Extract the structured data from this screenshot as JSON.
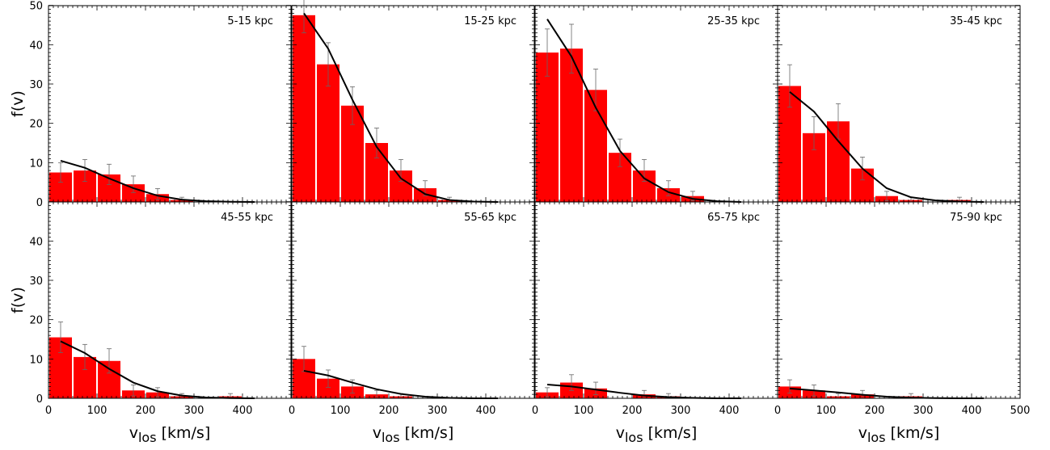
{
  "chart_data": {
    "type": "bar",
    "layout": "2x4 grid of panels with shared axes",
    "ylabel": "f(v)",
    "xlabel": "v",
    "xlabel_subscript": "los",
    "xlabel_unit": " [km/s]",
    "xlim": [
      0,
      500
    ],
    "ylim": [
      0,
      50
    ],
    "x_ticks": [
      0,
      100,
      200,
      300,
      400
    ],
    "x_ticks_last_panel": [
      0,
      100,
      200,
      300,
      400,
      500
    ],
    "y_ticks": [
      0,
      10,
      20,
      30,
      40,
      50
    ],
    "y_ticks_lower_row": [
      0,
      10,
      20,
      30,
      40
    ],
    "bin_width": 50,
    "bar_color": "#ff0000",
    "line_color": "#000000",
    "errorbar_color": "#666666",
    "panels": [
      {
        "label": "5-15 kpc",
        "bins": [
          {
            "x": 25,
            "y": 7.5,
            "err": 2.5
          },
          {
            "x": 75,
            "y": 8,
            "err": 2.8
          },
          {
            "x": 125,
            "y": 7,
            "err": 2.6
          },
          {
            "x": 175,
            "y": 4.5,
            "err": 2.1
          },
          {
            "x": 225,
            "y": 2,
            "err": 1.4
          },
          {
            "x": 275,
            "y": 0.5,
            "err": 0.7
          }
        ],
        "model": [
          [
            25,
            10.5
          ],
          [
            75,
            8.7
          ],
          [
            125,
            6.0
          ],
          [
            175,
            3.5
          ],
          [
            225,
            1.6
          ],
          [
            275,
            0.6
          ],
          [
            325,
            0.2
          ],
          [
            375,
            0.05
          ],
          [
            425,
            0
          ]
        ]
      },
      {
        "label": "15-25 kpc",
        "bins": [
          {
            "x": 25,
            "y": 47.5,
            "err": 4.5
          },
          {
            "x": 75,
            "y": 35,
            "err": 5.5
          },
          {
            "x": 125,
            "y": 24.5,
            "err": 4.8
          },
          {
            "x": 175,
            "y": 15,
            "err": 3.8
          },
          {
            "x": 225,
            "y": 8,
            "err": 2.8
          },
          {
            "x": 275,
            "y": 3.5,
            "err": 1.9
          },
          {
            "x": 325,
            "y": 0.5,
            "err": 0.7
          }
        ],
        "model": [
          [
            25,
            48
          ],
          [
            75,
            39
          ],
          [
            125,
            26
          ],
          [
            175,
            14
          ],
          [
            225,
            6
          ],
          [
            275,
            2
          ],
          [
            325,
            0.5
          ],
          [
            375,
            0.1
          ],
          [
            425,
            0
          ]
        ]
      },
      {
        "label": "25-35 kpc",
        "bins": [
          {
            "x": 25,
            "y": 38,
            "err": 6
          },
          {
            "x": 75,
            "y": 39,
            "err": 6.2
          },
          {
            "x": 125,
            "y": 28.5,
            "err": 5.3
          },
          {
            "x": 175,
            "y": 12.5,
            "err": 3.5
          },
          {
            "x": 225,
            "y": 8,
            "err": 2.8
          },
          {
            "x": 275,
            "y": 3.5,
            "err": 1.9
          },
          {
            "x": 325,
            "y": 1.5,
            "err": 1.2
          }
        ],
        "model": [
          [
            25,
            46.5
          ],
          [
            75,
            37
          ],
          [
            125,
            24
          ],
          [
            175,
            13
          ],
          [
            225,
            6
          ],
          [
            275,
            2.5
          ],
          [
            325,
            0.8
          ],
          [
            375,
            0.2
          ],
          [
            425,
            0
          ]
        ]
      },
      {
        "label": "35-45 kpc",
        "bins": [
          {
            "x": 25,
            "y": 29.5,
            "err": 5.4
          },
          {
            "x": 75,
            "y": 17.5,
            "err": 4.2
          },
          {
            "x": 125,
            "y": 20.5,
            "err": 4.5
          },
          {
            "x": 175,
            "y": 8.5,
            "err": 2.9
          },
          {
            "x": 225,
            "y": 1.5,
            "err": 1.2
          },
          {
            "x": 275,
            "y": 0.5,
            "err": 0.7
          },
          {
            "x": 375,
            "y": 0.5,
            "err": 0.7
          }
        ],
        "model": [
          [
            25,
            28
          ],
          [
            75,
            23
          ],
          [
            125,
            15.5
          ],
          [
            175,
            8.5
          ],
          [
            225,
            3.5
          ],
          [
            275,
            1.2
          ],
          [
            325,
            0.4
          ],
          [
            375,
            0.1
          ],
          [
            425,
            0
          ]
        ]
      },
      {
        "label": "45-55 kpc",
        "bins": [
          {
            "x": 25,
            "y": 15.5,
            "err": 3.9
          },
          {
            "x": 75,
            "y": 10.5,
            "err": 3.2
          },
          {
            "x": 125,
            "y": 9.5,
            "err": 3.1
          },
          {
            "x": 175,
            "y": 2,
            "err": 1.4
          },
          {
            "x": 225,
            "y": 1.5,
            "err": 1.2
          },
          {
            "x": 275,
            "y": 0.5,
            "err": 0.7
          },
          {
            "x": 375,
            "y": 0.5,
            "err": 0.7
          }
        ],
        "model": [
          [
            25,
            14.5
          ],
          [
            75,
            11.5
          ],
          [
            125,
            7.5
          ],
          [
            175,
            4
          ],
          [
            225,
            1.8
          ],
          [
            275,
            0.7
          ],
          [
            325,
            0.2
          ],
          [
            375,
            0.05
          ],
          [
            425,
            0
          ]
        ]
      },
      {
        "label": "55-65 kpc",
        "bins": [
          {
            "x": 25,
            "y": 10,
            "err": 3.2
          },
          {
            "x": 75,
            "y": 5,
            "err": 2.2
          },
          {
            "x": 125,
            "y": 3,
            "err": 1.7
          },
          {
            "x": 175,
            "y": 1,
            "err": 1.0
          },
          {
            "x": 225,
            "y": 0.5,
            "err": 0.7
          }
        ],
        "model": [
          [
            25,
            7
          ],
          [
            75,
            5.8
          ],
          [
            125,
            4
          ],
          [
            175,
            2.3
          ],
          [
            225,
            1.1
          ],
          [
            275,
            0.4
          ],
          [
            325,
            0.1
          ],
          [
            375,
            0
          ],
          [
            425,
            0
          ]
        ]
      },
      {
        "label": "65-75 kpc",
        "bins": [
          {
            "x": 25,
            "y": 1.5,
            "err": 1.2
          },
          {
            "x": 75,
            "y": 4,
            "err": 2.0
          },
          {
            "x": 125,
            "y": 2.5,
            "err": 1.6
          },
          {
            "x": 225,
            "y": 1,
            "err": 1.0
          },
          {
            "x": 275,
            "y": 0.5,
            "err": 0.7
          }
        ],
        "model": [
          [
            25,
            3.5
          ],
          [
            75,
            3
          ],
          [
            125,
            2.2
          ],
          [
            175,
            1.4
          ],
          [
            225,
            0.7
          ],
          [
            275,
            0.3
          ],
          [
            325,
            0.1
          ],
          [
            375,
            0
          ],
          [
            425,
            0
          ]
        ]
      },
      {
        "label": "75-90 kpc",
        "bins": [
          {
            "x": 25,
            "y": 3,
            "err": 1.7
          },
          {
            "x": 75,
            "y": 2,
            "err": 1.4
          },
          {
            "x": 125,
            "y": 0.5,
            "err": 0.7
          },
          {
            "x": 175,
            "y": 1,
            "err": 1.0
          },
          {
            "x": 275,
            "y": 0.5,
            "err": 0.7
          }
        ],
        "model": [
          [
            25,
            2.5
          ],
          [
            75,
            2
          ],
          [
            125,
            1.5
          ],
          [
            175,
            0.9
          ],
          [
            225,
            0.4
          ],
          [
            275,
            0.15
          ],
          [
            325,
            0.05
          ],
          [
            375,
            0
          ],
          [
            425,
            0
          ]
        ]
      }
    ]
  }
}
